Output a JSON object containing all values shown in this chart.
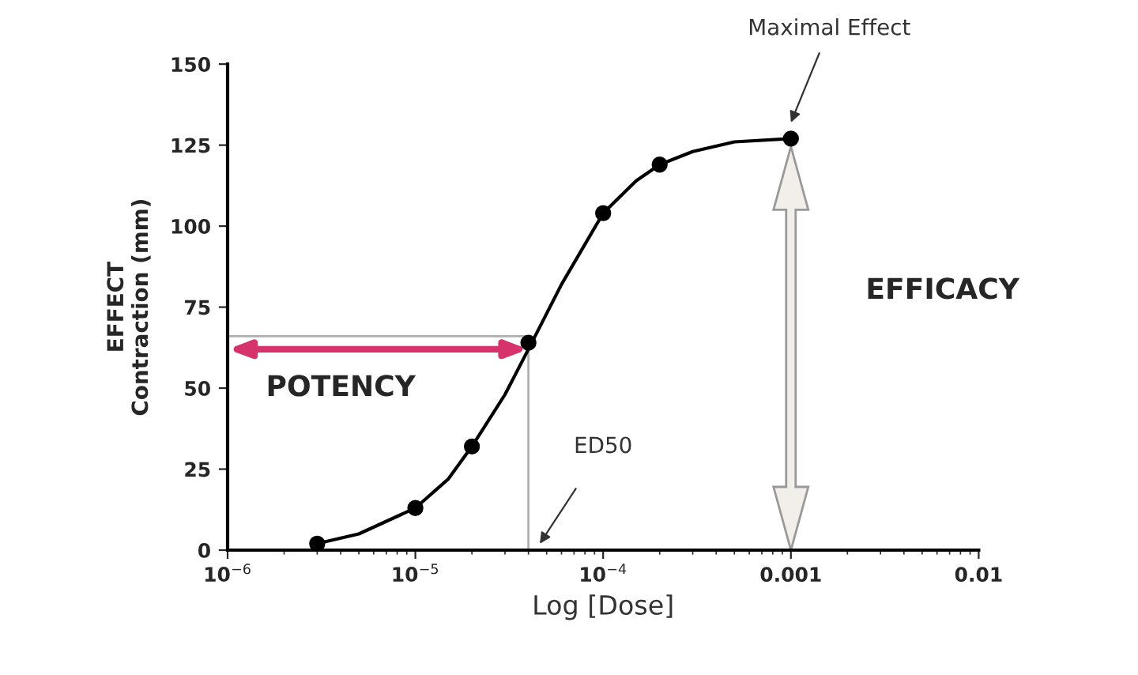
{
  "chart_data": {
    "type": "scatter",
    "xlabel": "Log [Dose]",
    "ylabel": "EFFECT\nContraction (mm)",
    "log": "x",
    "grid": false,
    "marker": "circle",
    "xlim": [
      1e-06,
      0.01
    ],
    "ylim": [
      0,
      150
    ],
    "xticks": [
      {
        "value": 1e-06,
        "label": "10$^{−6}$"
      },
      {
        "value": 1e-05,
        "label": "10$^{−5}$"
      },
      {
        "value": 0.0001,
        "label": "10$^{−4}$"
      },
      0.001,
      0.01
    ],
    "yticks": [
      0,
      25,
      50,
      75,
      100,
      125,
      150
    ],
    "series": [
      {
        "type": "line",
        "color": "#000000",
        "marker": "none",
        "x": [
          3e-06,
          5e-06,
          1e-05,
          1.5e-05,
          2e-05,
          3e-05,
          4e-05,
          6e-05,
          0.0001,
          0.00015,
          0.0002,
          0.0003,
          0.0005,
          0.001
        ],
        "values": [
          2,
          5,
          13,
          22,
          32,
          48,
          62,
          82,
          104,
          114,
          119,
          123,
          126,
          127
        ]
      },
      {
        "color": "#000000",
        "x": [
          3e-06,
          1e-05,
          2e-05,
          4e-05,
          0.0001,
          0.0002,
          0.001
        ],
        "values": [
          2,
          13,
          32,
          64,
          104,
          119,
          127
        ]
      }
    ],
    "ref_lines": [
      {
        "axis": "y",
        "value": 66,
        "color": "#b0b0b0"
      },
      {
        "axis": "x",
        "value": 4e-05,
        "color": "#b0b0b0"
      }
    ],
    "annotations": [
      "Maximal Effect",
      "ED50",
      "POTENCY",
      "EFFICACY"
    ]
  }
}
